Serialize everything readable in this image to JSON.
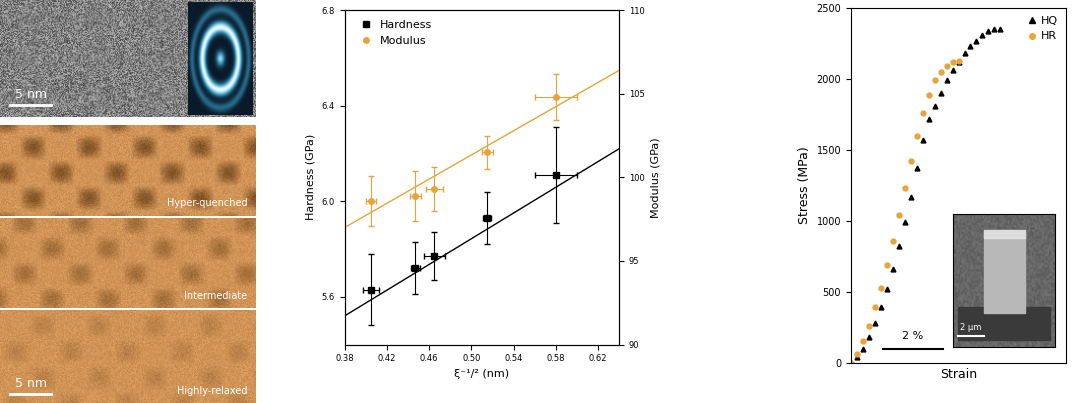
{
  "images": [
    {
      "scale_bar": "5 nm"
    },
    {
      "label": "Hyper-quenched"
    },
    {
      "label": "Intermediate"
    },
    {
      "label": "Highly-relaxed",
      "scale_bar": "5 nm"
    }
  ],
  "chart_data": [
    {
      "type": "scatter",
      "x_label": "ξ⁻¹/² (nm)",
      "y_label": "Hardness (GPa)",
      "y2_label": "Modulus (GPa)",
      "xlim": [
        0.38,
        0.64
      ],
      "xticks": [
        0.38,
        0.42,
        0.46,
        {
          "value": 0.5,
          "label": "0.50"
        },
        0.54,
        0.58,
        0.62
      ],
      "ylim": [
        5.4,
        6.8
      ],
      "yticks": [
        5.6,
        {
          "value": 6.0,
          "label": "6.0"
        },
        6.4,
        6.8
      ],
      "y2lim": [
        90,
        110
      ],
      "y2ticks": [
        90,
        95,
        100,
        105,
        110
      ],
      "grid": false,
      "legend": "upper left",
      "series": [
        {
          "name": "Hardness",
          "color": "#000000",
          "marker": "square",
          "axis": "y",
          "x": [
            0.405,
            0.447,
            0.465,
            0.515,
            0.58
          ],
          "values": [
            5.63,
            5.72,
            5.77,
            5.93,
            6.11
          ],
          "x_error": [
            0.008,
            0.004,
            0.01,
            0.004,
            0.02
          ],
          "error": [
            0.15,
            0.11,
            0.1,
            0.11,
            0.2
          ]
        },
        {
          "name": "Modulus",
          "color": "#e8a33a",
          "marker": "circle",
          "axis": "y2",
          "x": [
            0.405,
            0.447,
            0.465,
            0.515,
            0.58
          ],
          "values": [
            98.6,
            98.9,
            99.3,
            101.5,
            104.8
          ],
          "x_error": [
            0.005,
            0.005,
            0.008,
            0.005,
            0.02
          ],
          "error": [
            1.5,
            1.5,
            1.3,
            1.0,
            1.4
          ]
        },
        {
          "type": "line",
          "color": "#000000",
          "line_style": "solid",
          "axis": "y",
          "x": [
            0.38,
            0.64
          ],
          "values": [
            5.52,
            6.22
          ]
        },
        {
          "type": "line",
          "color": "#e8a33a",
          "line_style": "solid",
          "axis": "y2",
          "x": [
            0.38,
            0.64
          ],
          "values": [
            97.0,
            106.4
          ]
        }
      ]
    },
    {
      "type": "scatter",
      "x_label": "Strain",
      "y_label": "Stress (MPa)",
      "xlim": [
        0,
        7.2
      ],
      "ylim": [
        0,
        2500
      ],
      "yticks": [
        0,
        500,
        1000,
        1500,
        2000,
        2500
      ],
      "tick_labels": "y",
      "legend": "upper right",
      "scale_bar": {
        "value": 2,
        "label": "2 %"
      },
      "inset_image": {
        "scale_bar": "2 µm"
      },
      "series": [
        {
          "name": "HQ",
          "color": "#000000",
          "marker": "triangle",
          "x": [
            0,
            0.2,
            0.4,
            0.6,
            0.8,
            1.0,
            1.2,
            1.4,
            1.6,
            1.8,
            2.0,
            2.2,
            2.4,
            2.6,
            2.8,
            3.0,
            3.2,
            3.4,
            3.6,
            3.8,
            4.0,
            4.2,
            4.4,
            4.6,
            4.8,
            5.0
          ],
          "values": [
            0,
            40,
            100,
            180,
            280,
            390,
            520,
            660,
            820,
            990,
            1170,
            1370,
            1570,
            1720,
            1810,
            1900,
            1990,
            2060,
            2120,
            2180,
            2230,
            2270,
            2310,
            2340,
            2350,
            2350
          ]
        },
        {
          "name": "HR",
          "color": "#e8a33a",
          "marker": "circle",
          "x": [
            0,
            0.2,
            0.4,
            0.6,
            0.8,
            1.0,
            1.2,
            1.4,
            1.6,
            1.8,
            2.0,
            2.2,
            2.4,
            2.6,
            2.8,
            3.0,
            3.2,
            3.4,
            3.6
          ],
          "values": [
            0,
            60,
            150,
            260,
            390,
            530,
            690,
            860,
            1040,
            1230,
            1420,
            1600,
            1760,
            1890,
            1990,
            2050,
            2090,
            2120,
            2130
          ]
        }
      ]
    }
  ]
}
